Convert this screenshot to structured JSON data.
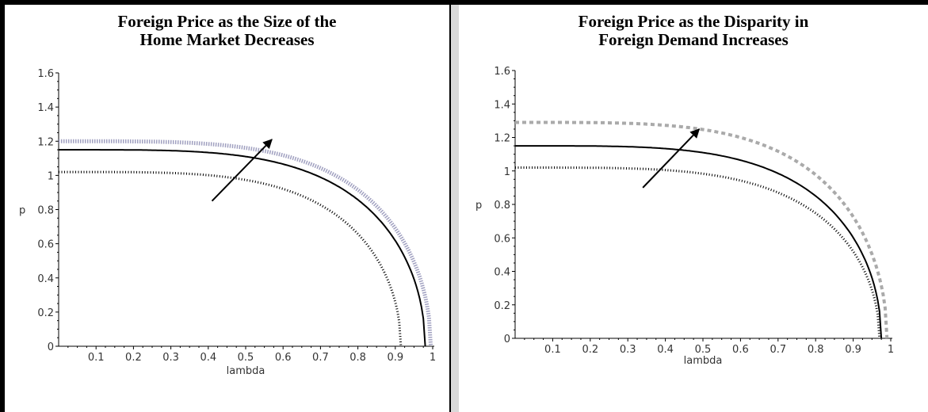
{
  "chart_data": [
    {
      "type": "line",
      "title_lines": [
        "Foreign Price as the Size of the",
        "Home Market Decreases"
      ],
      "xlabel": "lambda",
      "ylabel": "p",
      "xlim": [
        0,
        1
      ],
      "ylim": [
        0,
        1.6
      ],
      "x_ticks": [
        "0.1",
        "0.2",
        "0.3",
        "0.4",
        "0.5",
        "0.6",
        "0.7",
        "0.8",
        "0.9",
        "1"
      ],
      "y_ticks": [
        "0",
        "0.2",
        "0.4",
        "0.6",
        "0.8",
        "1",
        "1.2",
        "1.4",
        "1.6"
      ],
      "series": [
        {
          "p0": 1.2,
          "x_end": 0.995,
          "color": "#a0a0c0",
          "style": "dotted-wide"
        },
        {
          "p0": 1.15,
          "x_end": 0.98,
          "color": "#000000",
          "style": "solid"
        },
        {
          "p0": 1.02,
          "x_end": 0.915,
          "color": "#000000",
          "style": "dotted"
        }
      ],
      "arrow": {
        "from": [
          0.41,
          0.85
        ],
        "to": [
          0.57,
          1.21
        ]
      }
    },
    {
      "type": "line",
      "title_lines": [
        "Foreign Price as the Disparity in",
        "Foreign Demand Increases"
      ],
      "xlabel": "lambda",
      "ylabel": "p",
      "xlim": [
        0,
        1
      ],
      "ylim": [
        0,
        1.6
      ],
      "x_ticks": [
        "0.1",
        "0.2",
        "0.3",
        "0.4",
        "0.5",
        "0.6",
        "0.7",
        "0.8",
        "0.9",
        "1"
      ],
      "y_ticks": [
        "0",
        "0.2",
        "0.4",
        "0.6",
        "0.8",
        "1",
        "1.2",
        "1.4",
        "1.6"
      ],
      "series": [
        {
          "p0": 1.29,
          "x_end": 0.99,
          "color": "#aaaaaa",
          "style": "dashed-thick"
        },
        {
          "p0": 1.15,
          "x_end": 0.975,
          "color": "#000000",
          "style": "solid"
        },
        {
          "p0": 1.02,
          "x_end": 0.97,
          "color": "#000000",
          "style": "dotted"
        }
      ],
      "arrow": {
        "from": [
          0.34,
          0.9
        ],
        "to": [
          0.49,
          1.25
        ]
      }
    }
  ]
}
